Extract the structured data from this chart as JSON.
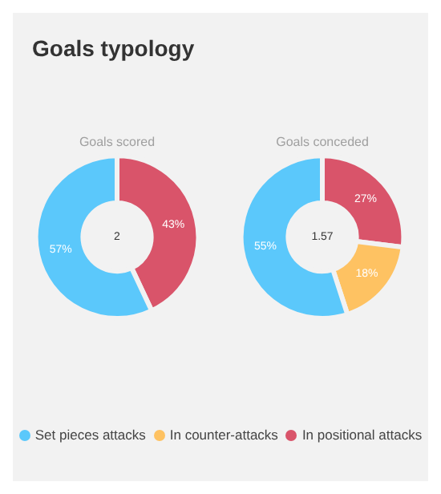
{
  "chart_data": [
    {
      "type": "other",
      "title": "Goals typology"
    },
    {
      "type": "donut",
      "title": "Goals scored",
      "categories": [
        null,
        null
      ],
      "values": [
        57,
        43
      ],
      "colors": [
        "#5bc8fb",
        "#d9546a"
      ],
      "value_labels": [
        "57%",
        "43%"
      ],
      "annotations": [
        "2"
      ]
    },
    {
      "type": "donut",
      "title": "Goals conceded",
      "categories": [
        "Set pieces attacks",
        "In counter-attacks",
        "In positional attacks"
      ],
      "values": [
        55,
        18,
        27
      ],
      "colors": [
        "#5bc8fb",
        "#fec262",
        "#d9546a"
      ],
      "value_labels": [
        "55%",
        "18%",
        "27%"
      ],
      "annotations": [
        "1.57"
      ],
      "legend": "bottom"
    }
  ]
}
